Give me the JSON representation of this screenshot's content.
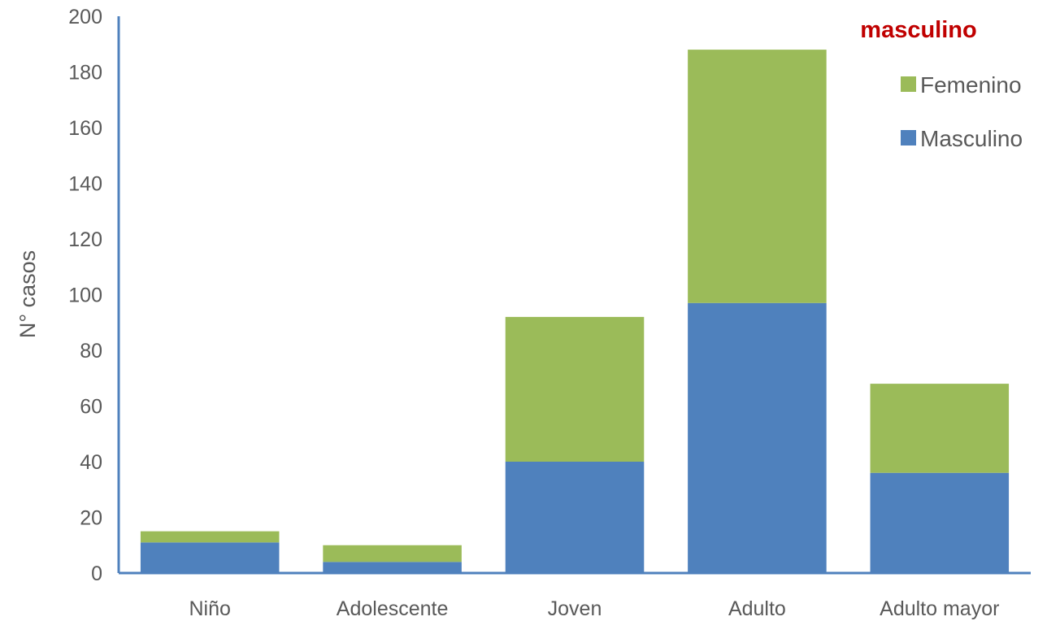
{
  "chart_data": {
    "type": "bar",
    "stacked": true,
    "title": "masculino",
    "title_color": "#c00000",
    "categories": [
      "Niño",
      "Adolescente",
      "Joven",
      "Adulto",
      "Adulto mayor"
    ],
    "series": [
      {
        "name": "Masculino",
        "values": [
          11,
          4,
          40,
          97,
          36
        ],
        "color": "#4f81bd"
      },
      {
        "name": "Femenino",
        "values": [
          4,
          6,
          52,
          91,
          32
        ],
        "color": "#9bbb59"
      }
    ],
    "ylabel": "N° casos",
    "xlabel": "",
    "ylim": [
      0,
      200
    ],
    "yticks": [
      0,
      20,
      40,
      60,
      80,
      100,
      120,
      140,
      160,
      180,
      200
    ],
    "grid": false,
    "legend": "top-right",
    "legend_order": [
      "Femenino",
      "Masculino"
    ],
    "axis_color": "#4f81bd"
  }
}
